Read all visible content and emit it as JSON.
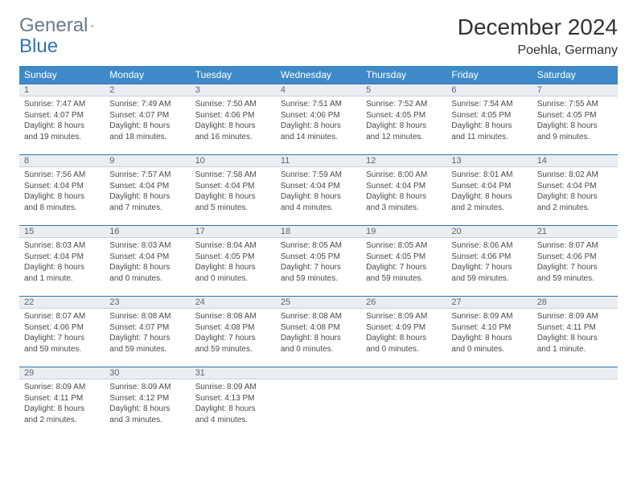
{
  "logo": {
    "word1": "General",
    "word2": "Blue"
  },
  "title": "December 2024",
  "location": "Poehla, Germany",
  "colors": {
    "header_bg": "#3e8ac9",
    "header_text": "#ffffff",
    "daynum_bg": "#eaeef2",
    "daynum_border_top": "#2e75b6",
    "body_text": "#4a4a4a",
    "logo_gray": "#6b7a8a",
    "logo_blue": "#2e75b6"
  },
  "weekdays": [
    "Sunday",
    "Monday",
    "Tuesday",
    "Wednesday",
    "Thursday",
    "Friday",
    "Saturday"
  ],
  "days": [
    {
      "n": "1",
      "sr": "Sunrise: 7:47 AM",
      "ss": "Sunset: 4:07 PM",
      "dl1": "Daylight: 8 hours",
      "dl2": "and 19 minutes."
    },
    {
      "n": "2",
      "sr": "Sunrise: 7:49 AM",
      "ss": "Sunset: 4:07 PM",
      "dl1": "Daylight: 8 hours",
      "dl2": "and 18 minutes."
    },
    {
      "n": "3",
      "sr": "Sunrise: 7:50 AM",
      "ss": "Sunset: 4:06 PM",
      "dl1": "Daylight: 8 hours",
      "dl2": "and 16 minutes."
    },
    {
      "n": "4",
      "sr": "Sunrise: 7:51 AM",
      "ss": "Sunset: 4:06 PM",
      "dl1": "Daylight: 8 hours",
      "dl2": "and 14 minutes."
    },
    {
      "n": "5",
      "sr": "Sunrise: 7:52 AM",
      "ss": "Sunset: 4:05 PM",
      "dl1": "Daylight: 8 hours",
      "dl2": "and 12 minutes."
    },
    {
      "n": "6",
      "sr": "Sunrise: 7:54 AM",
      "ss": "Sunset: 4:05 PM",
      "dl1": "Daylight: 8 hours",
      "dl2": "and 11 minutes."
    },
    {
      "n": "7",
      "sr": "Sunrise: 7:55 AM",
      "ss": "Sunset: 4:05 PM",
      "dl1": "Daylight: 8 hours",
      "dl2": "and 9 minutes."
    },
    {
      "n": "8",
      "sr": "Sunrise: 7:56 AM",
      "ss": "Sunset: 4:04 PM",
      "dl1": "Daylight: 8 hours",
      "dl2": "and 8 minutes."
    },
    {
      "n": "9",
      "sr": "Sunrise: 7:57 AM",
      "ss": "Sunset: 4:04 PM",
      "dl1": "Daylight: 8 hours",
      "dl2": "and 7 minutes."
    },
    {
      "n": "10",
      "sr": "Sunrise: 7:58 AM",
      "ss": "Sunset: 4:04 PM",
      "dl1": "Daylight: 8 hours",
      "dl2": "and 5 minutes."
    },
    {
      "n": "11",
      "sr": "Sunrise: 7:59 AM",
      "ss": "Sunset: 4:04 PM",
      "dl1": "Daylight: 8 hours",
      "dl2": "and 4 minutes."
    },
    {
      "n": "12",
      "sr": "Sunrise: 8:00 AM",
      "ss": "Sunset: 4:04 PM",
      "dl1": "Daylight: 8 hours",
      "dl2": "and 3 minutes."
    },
    {
      "n": "13",
      "sr": "Sunrise: 8:01 AM",
      "ss": "Sunset: 4:04 PM",
      "dl1": "Daylight: 8 hours",
      "dl2": "and 2 minutes."
    },
    {
      "n": "14",
      "sr": "Sunrise: 8:02 AM",
      "ss": "Sunset: 4:04 PM",
      "dl1": "Daylight: 8 hours",
      "dl2": "and 2 minutes."
    },
    {
      "n": "15",
      "sr": "Sunrise: 8:03 AM",
      "ss": "Sunset: 4:04 PM",
      "dl1": "Daylight: 8 hours",
      "dl2": "and 1 minute."
    },
    {
      "n": "16",
      "sr": "Sunrise: 8:03 AM",
      "ss": "Sunset: 4:04 PM",
      "dl1": "Daylight: 8 hours",
      "dl2": "and 0 minutes."
    },
    {
      "n": "17",
      "sr": "Sunrise: 8:04 AM",
      "ss": "Sunset: 4:05 PM",
      "dl1": "Daylight: 8 hours",
      "dl2": "and 0 minutes."
    },
    {
      "n": "18",
      "sr": "Sunrise: 8:05 AM",
      "ss": "Sunset: 4:05 PM",
      "dl1": "Daylight: 7 hours",
      "dl2": "and 59 minutes."
    },
    {
      "n": "19",
      "sr": "Sunrise: 8:05 AM",
      "ss": "Sunset: 4:05 PM",
      "dl1": "Daylight: 7 hours",
      "dl2": "and 59 minutes."
    },
    {
      "n": "20",
      "sr": "Sunrise: 8:06 AM",
      "ss": "Sunset: 4:06 PM",
      "dl1": "Daylight: 7 hours",
      "dl2": "and 59 minutes."
    },
    {
      "n": "21",
      "sr": "Sunrise: 8:07 AM",
      "ss": "Sunset: 4:06 PM",
      "dl1": "Daylight: 7 hours",
      "dl2": "and 59 minutes."
    },
    {
      "n": "22",
      "sr": "Sunrise: 8:07 AM",
      "ss": "Sunset: 4:06 PM",
      "dl1": "Daylight: 7 hours",
      "dl2": "and 59 minutes."
    },
    {
      "n": "23",
      "sr": "Sunrise: 8:08 AM",
      "ss": "Sunset: 4:07 PM",
      "dl1": "Daylight: 7 hours",
      "dl2": "and 59 minutes."
    },
    {
      "n": "24",
      "sr": "Sunrise: 8:08 AM",
      "ss": "Sunset: 4:08 PM",
      "dl1": "Daylight: 7 hours",
      "dl2": "and 59 minutes."
    },
    {
      "n": "25",
      "sr": "Sunrise: 8:08 AM",
      "ss": "Sunset: 4:08 PM",
      "dl1": "Daylight: 8 hours",
      "dl2": "and 0 minutes."
    },
    {
      "n": "26",
      "sr": "Sunrise: 8:09 AM",
      "ss": "Sunset: 4:09 PM",
      "dl1": "Daylight: 8 hours",
      "dl2": "and 0 minutes."
    },
    {
      "n": "27",
      "sr": "Sunrise: 8:09 AM",
      "ss": "Sunset: 4:10 PM",
      "dl1": "Daylight: 8 hours",
      "dl2": "and 0 minutes."
    },
    {
      "n": "28",
      "sr": "Sunrise: 8:09 AM",
      "ss": "Sunset: 4:11 PM",
      "dl1": "Daylight: 8 hours",
      "dl2": "and 1 minute."
    },
    {
      "n": "29",
      "sr": "Sunrise: 8:09 AM",
      "ss": "Sunset: 4:11 PM",
      "dl1": "Daylight: 8 hours",
      "dl2": "and 2 minutes."
    },
    {
      "n": "30",
      "sr": "Sunrise: 8:09 AM",
      "ss": "Sunset: 4:12 PM",
      "dl1": "Daylight: 8 hours",
      "dl2": "and 3 minutes."
    },
    {
      "n": "31",
      "sr": "Sunrise: 8:09 AM",
      "ss": "Sunset: 4:13 PM",
      "dl1": "Daylight: 8 hours",
      "dl2": "and 4 minutes."
    }
  ]
}
